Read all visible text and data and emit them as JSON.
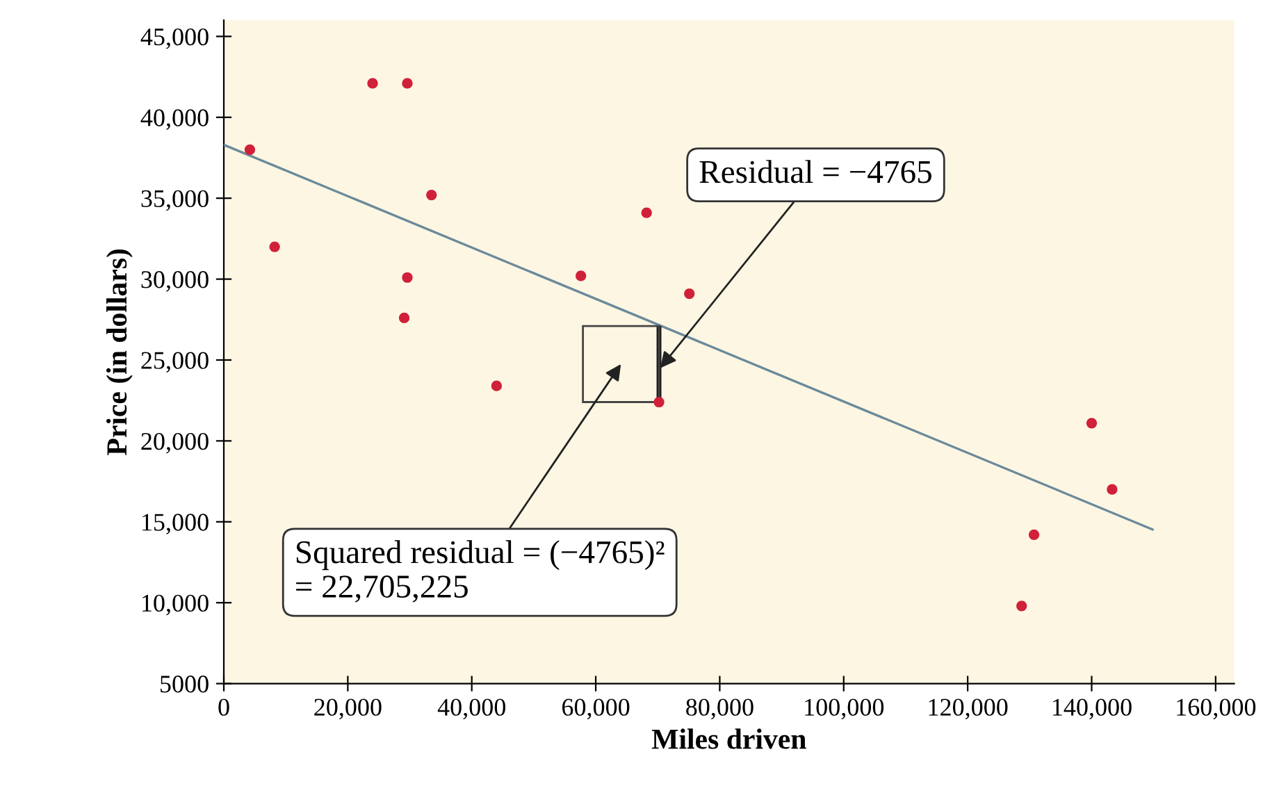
{
  "chart_data": {
    "type": "scatter",
    "xlabel": "Miles driven",
    "ylabel": "Price (in dollars)",
    "xlim": [
      0,
      163000
    ],
    "ylim": [
      5000,
      46000
    ],
    "xticks": [
      {
        "value": 0,
        "label": "0"
      },
      {
        "value": 20000,
        "label": "20,000"
      },
      {
        "value": 40000,
        "label": "40,000"
      },
      {
        "value": 60000,
        "label": "60,000"
      },
      {
        "value": 80000,
        "label": "80,000"
      },
      {
        "value": 100000,
        "label": "100,000"
      },
      {
        "value": 120000,
        "label": "120,000"
      },
      {
        "value": 140000,
        "label": "140,000"
      },
      {
        "value": 160000,
        "label": "160,000"
      }
    ],
    "yticks": [
      {
        "value": 5000,
        "label": "5000"
      },
      {
        "value": 10000,
        "label": "10,000"
      },
      {
        "value": 15000,
        "label": "15,000"
      },
      {
        "value": 20000,
        "label": "20,000"
      },
      {
        "value": 25000,
        "label": "25,000"
      },
      {
        "value": 30000,
        "label": "30,000"
      },
      {
        "value": 35000,
        "label": "35,000"
      },
      {
        "value": 40000,
        "label": "40,000"
      },
      {
        "value": 45000,
        "label": "45,000"
      }
    ],
    "grid": false,
    "series": [
      {
        "color": "#d0203a",
        "marker": "circle",
        "x": [
          4200,
          8200,
          24000,
          29600,
          33500,
          29600,
          29100,
          44000,
          57600,
          68200,
          75100,
          70200,
          140000,
          143300,
          130700,
          128700
        ],
        "values": [
          38000,
          32000,
          42100,
          42100,
          35200,
          30100,
          27600,
          23400,
          30200,
          34100,
          29100,
          22400,
          21100,
          17000,
          14200,
          9800
        ]
      },
      {
        "type": "line",
        "color": "#6a8a9a",
        "x": [
          0,
          150000
        ],
        "values": [
          38300,
          14500
        ]
      },
      {
        "type": "line",
        "color": "#1a1a1a",
        "x": [
          70200,
          70200
        ],
        "values": [
          22400,
          27100
        ]
      }
    ],
    "annotations": [
      {
        "text": "Residual = −4765",
        "x": 70400,
        "y": 24500
      },
      "Squared residual = (−4765)²\n= 22,705,225"
    ]
  }
}
